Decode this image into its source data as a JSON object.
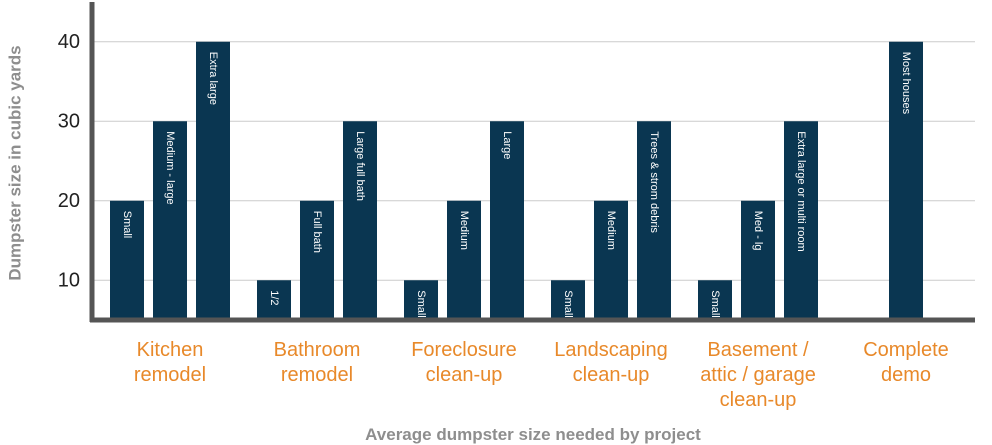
{
  "chart_data": {
    "type": "bar",
    "ylabel": "Dumpster size in cubic yards",
    "xlabel": "Average dumpster size needed by project",
    "ylim": [
      5,
      45
    ],
    "yticks": [
      10,
      20,
      30,
      40
    ],
    "grid": true,
    "colors": {
      "bar": "#0a3651",
      "category": "#e8892a",
      "axis": "#555555",
      "grid": "#cccccc"
    },
    "groups": [
      {
        "category": [
          "Kitchen",
          "remodel"
        ],
        "bars": [
          {
            "label": "Small",
            "value": 20
          },
          {
            "label": "Medium - large",
            "value": 30
          },
          {
            "label": "Extra large",
            "value": 40
          }
        ]
      },
      {
        "category": [
          "Bathroom",
          "remodel"
        ],
        "bars": [
          {
            "label": "1/2",
            "value": 10
          },
          {
            "label": "Full bath",
            "value": 20
          },
          {
            "label": "Large full bath",
            "value": 30
          }
        ]
      },
      {
        "category": [
          "Foreclosure",
          "clean-up"
        ],
        "bars": [
          {
            "label": "Small",
            "value": 10
          },
          {
            "label": "Medium",
            "value": 20
          },
          {
            "label": "Large",
            "value": 30
          }
        ]
      },
      {
        "category": [
          "Landscaping",
          "clean-up"
        ],
        "bars": [
          {
            "label": "Small",
            "value": 10
          },
          {
            "label": "Medium",
            "value": 20
          },
          {
            "label": "Trees & strom debris",
            "value": 30
          }
        ]
      },
      {
        "category": [
          "Basement /",
          "attic / garage",
          "clean-up"
        ],
        "bars": [
          {
            "label": "Small",
            "value": 10
          },
          {
            "label": "Med - lg",
            "value": 20
          },
          {
            "label": "Extra large or multi room",
            "value": 30
          }
        ]
      },
      {
        "category": [
          "Complete",
          "demo"
        ],
        "bars": [
          {
            "label": "Most houses",
            "value": 40
          }
        ]
      }
    ]
  }
}
